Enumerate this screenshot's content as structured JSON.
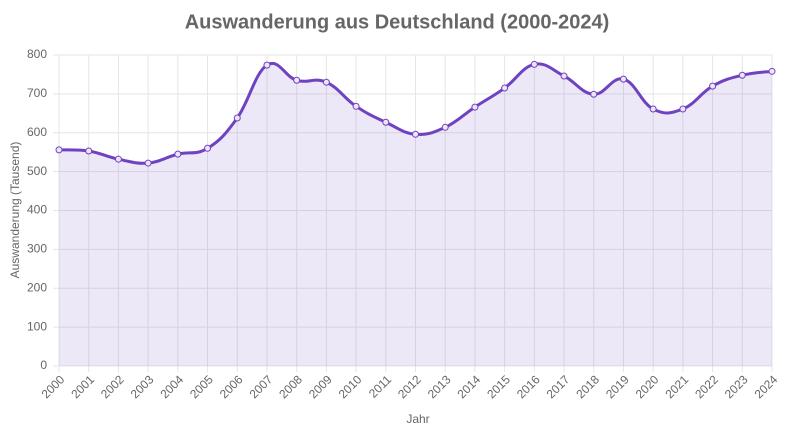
{
  "chart_data": {
    "type": "line",
    "title": "Auswanderung aus Deutschland (2000-2024)",
    "xlabel": "Jahr",
    "ylabel": "Auswanderung (Tausend)",
    "categories": [
      "2000",
      "2001",
      "2002",
      "2003",
      "2004",
      "2005",
      "2006",
      "2007",
      "2008",
      "2009",
      "2010",
      "2011",
      "2012",
      "2013",
      "2014",
      "2015",
      "2016",
      "2017",
      "2018",
      "2019",
      "2020",
      "2021",
      "2022",
      "2023",
      "2024"
    ],
    "series": [
      {
        "color": "#6f42c1",
        "values": [
          556,
          553,
          532,
          522,
          545,
          560,
          638,
          774,
          735,
          730,
          668,
          627,
          596,
          614,
          666,
          715,
          776,
          746,
          699,
          738,
          661,
          661,
          720,
          748,
          758
        ]
      }
    ],
    "ylim": [
      0,
      800
    ],
    "yticks": [
      0,
      100,
      200,
      300,
      400,
      500,
      600,
      700,
      800
    ],
    "grid": true
  }
}
